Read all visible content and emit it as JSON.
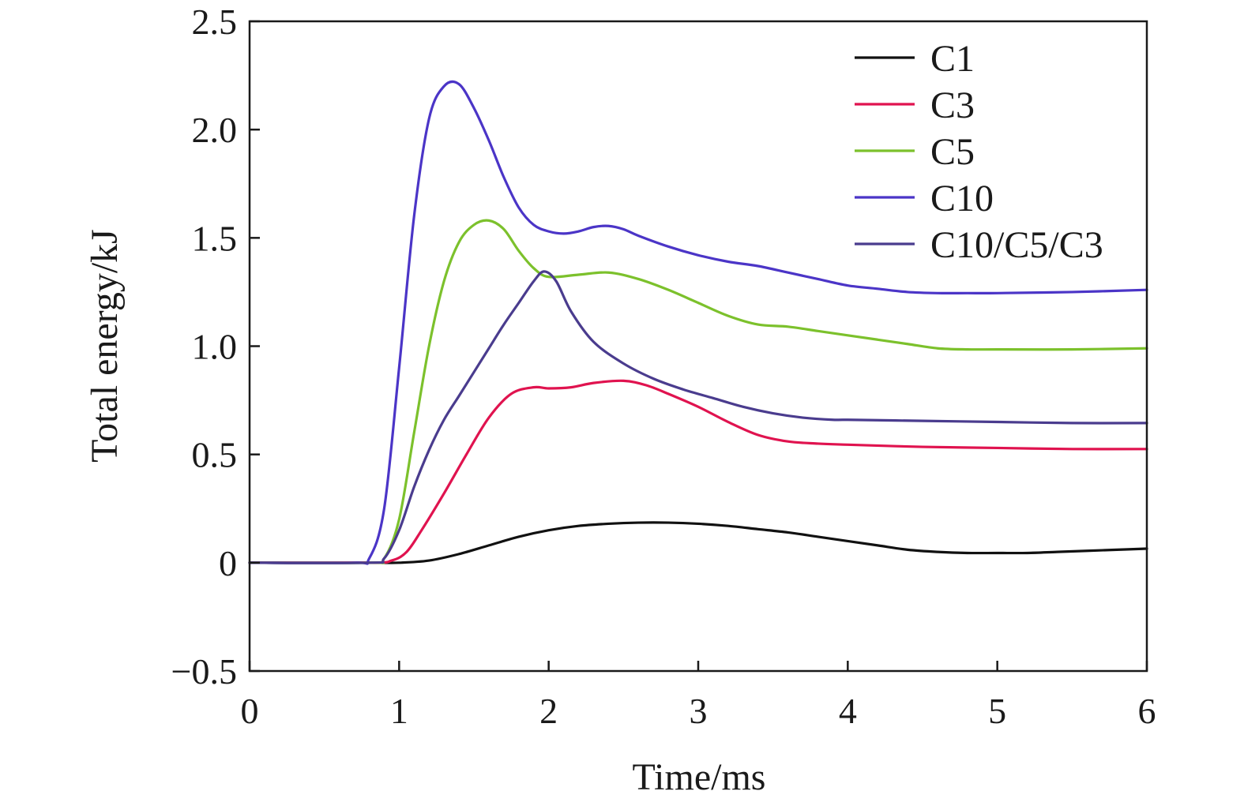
{
  "chart_data": {
    "type": "line",
    "title": "",
    "xlabel": "Time/ms",
    "ylabel": "Total energy/kJ",
    "xlim": [
      0,
      6
    ],
    "ylim": [
      -0.5,
      2.5
    ],
    "xticks": [
      0,
      1,
      2,
      3,
      4,
      5,
      6
    ],
    "xtick_labels": [
      "0",
      "1",
      "2",
      "3",
      "4",
      "5",
      "6"
    ],
    "yticks": [
      -0.5,
      0,
      0.5,
      1.0,
      1.5,
      2.0,
      2.5
    ],
    "ytick_labels": [
      "−0.5",
      "0",
      "0.5",
      "1.0",
      "1.5",
      "2.0",
      "2.5"
    ],
    "grid": false,
    "legend_position": "top-right",
    "series": [
      {
        "name": "C1",
        "color": "#111111",
        "x": [
          0,
          0.8,
          1.0,
          1.2,
          1.4,
          1.6,
          1.8,
          2.0,
          2.2,
          2.4,
          2.6,
          2.8,
          3.0,
          3.2,
          3.4,
          3.6,
          3.8,
          4.0,
          4.2,
          4.4,
          4.6,
          4.8,
          5.0,
          5.2,
          5.4,
          5.6,
          5.8,
          6.0
        ],
        "y": [
          0,
          0,
          0.0,
          0.01,
          0.04,
          0.08,
          0.12,
          0.15,
          0.17,
          0.18,
          0.185,
          0.185,
          0.18,
          0.17,
          0.155,
          0.14,
          0.12,
          0.1,
          0.08,
          0.06,
          0.05,
          0.045,
          0.045,
          0.045,
          0.05,
          0.055,
          0.06,
          0.065
        ]
      },
      {
        "name": "C3",
        "color": "#e0134f",
        "x": [
          0,
          0.8,
          0.95,
          1.05,
          1.15,
          1.3,
          1.45,
          1.6,
          1.75,
          1.9,
          2.0,
          2.15,
          2.3,
          2.5,
          2.65,
          2.8,
          3.0,
          3.2,
          3.4,
          3.6,
          3.8,
          4.0,
          4.5,
          5.0,
          5.5,
          6.0
        ],
        "y": [
          0,
          0,
          0.01,
          0.05,
          0.15,
          0.32,
          0.5,
          0.67,
          0.78,
          0.81,
          0.805,
          0.81,
          0.83,
          0.84,
          0.82,
          0.78,
          0.72,
          0.65,
          0.59,
          0.56,
          0.55,
          0.545,
          0.535,
          0.53,
          0.525,
          0.525
        ]
      },
      {
        "name": "C5",
        "color": "#7cc12c",
        "x": [
          0,
          0.8,
          0.9,
          1.0,
          1.1,
          1.2,
          1.3,
          1.4,
          1.5,
          1.6,
          1.7,
          1.8,
          1.9,
          2.0,
          2.2,
          2.4,
          2.6,
          2.8,
          3.0,
          3.2,
          3.4,
          3.6,
          3.8,
          4.0,
          4.2,
          4.4,
          4.6,
          4.8,
          5.0,
          5.5,
          6.0
        ],
        "y": [
          0,
          0,
          0.02,
          0.2,
          0.6,
          1.0,
          1.3,
          1.48,
          1.56,
          1.58,
          1.54,
          1.44,
          1.36,
          1.32,
          1.33,
          1.34,
          1.31,
          1.26,
          1.2,
          1.14,
          1.1,
          1.09,
          1.07,
          1.05,
          1.03,
          1.01,
          0.99,
          0.985,
          0.985,
          0.985,
          0.99
        ]
      },
      {
        "name": "C10",
        "color": "#4b35c7",
        "x": [
          0,
          0.7,
          0.8,
          0.9,
          1.0,
          1.1,
          1.2,
          1.3,
          1.4,
          1.5,
          1.6,
          1.7,
          1.8,
          1.9,
          2.0,
          2.1,
          2.2,
          2.3,
          2.4,
          2.5,
          2.6,
          2.8,
          3.0,
          3.2,
          3.4,
          3.6,
          3.8,
          4.0,
          4.2,
          4.4,
          4.6,
          4.8,
          5.0,
          5.5,
          6.0
        ],
        "y": [
          0,
          0,
          0.02,
          0.25,
          0.9,
          1.6,
          2.05,
          2.2,
          2.21,
          2.1,
          1.95,
          1.78,
          1.64,
          1.56,
          1.53,
          1.52,
          1.53,
          1.55,
          1.555,
          1.54,
          1.51,
          1.46,
          1.42,
          1.39,
          1.37,
          1.34,
          1.31,
          1.28,
          1.265,
          1.25,
          1.245,
          1.245,
          1.245,
          1.25,
          1.26
        ]
      },
      {
        "name": "C10/C5/C3",
        "color": "#4a3c8e",
        "x": [
          0,
          0.8,
          0.9,
          1.0,
          1.1,
          1.2,
          1.3,
          1.4,
          1.5,
          1.6,
          1.7,
          1.8,
          1.9,
          1.97,
          2.05,
          2.15,
          2.3,
          2.5,
          2.7,
          2.9,
          3.1,
          3.3,
          3.5,
          3.7,
          3.9,
          4.0,
          4.5,
          5.0,
          5.5,
          6.0
        ],
        "y": [
          0,
          0,
          0.02,
          0.15,
          0.35,
          0.52,
          0.66,
          0.77,
          0.88,
          0.99,
          1.1,
          1.2,
          1.3,
          1.345,
          1.3,
          1.16,
          1.02,
          0.92,
          0.85,
          0.8,
          0.76,
          0.72,
          0.69,
          0.67,
          0.66,
          0.66,
          0.655,
          0.65,
          0.645,
          0.645
        ]
      }
    ]
  }
}
